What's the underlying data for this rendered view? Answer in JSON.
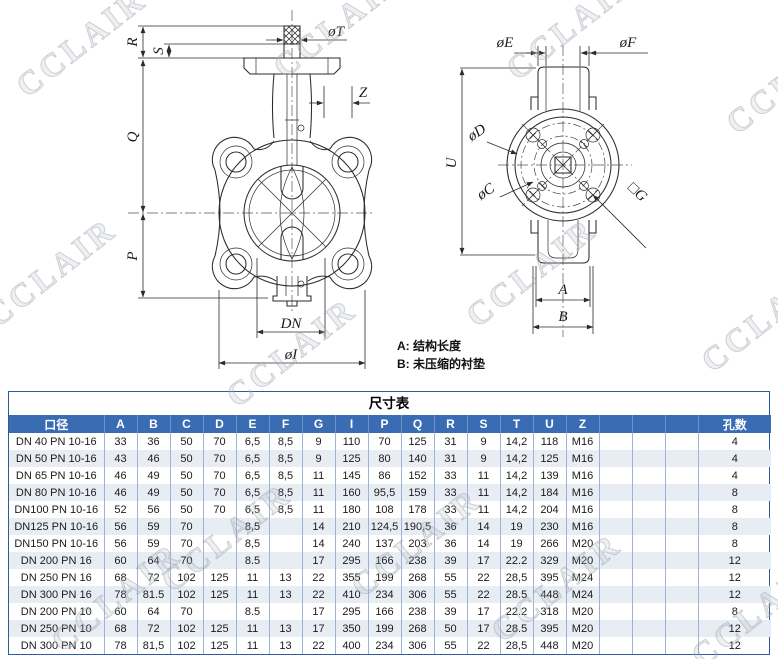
{
  "watermark_text": "CCLAIR",
  "drawing": {
    "front_view": {
      "labels": {
        "r": "R",
        "s": "S",
        "t": "øT",
        "z": "Z",
        "q": "Q",
        "p": "P",
        "dn": "DN",
        "i": "øI"
      }
    },
    "side_view": {
      "labels": {
        "e": "øE",
        "f": "øF",
        "d": "øD",
        "u": "U",
        "c": "øC",
        "g": "□G",
        "a": "A",
        "b": "B"
      }
    },
    "notes": [
      {
        "text": "A: 结构长度"
      },
      {
        "text": "B: 未压缩的衬垫"
      }
    ]
  },
  "table": {
    "title": "尺寸表",
    "columns": [
      "口径",
      "A",
      "B",
      "C",
      "D",
      "E",
      "F",
      "G",
      "I",
      "P",
      "Q",
      "R",
      "S",
      "T",
      "U",
      "Z",
      "",
      "",
      "",
      "孔数"
    ],
    "rows": [
      [
        "DN 40 PN 10-16",
        "33",
        "36",
        "50",
        "70",
        "6,5",
        "8,5",
        "9",
        "110",
        "70",
        "125",
        "31",
        "9",
        "14,2",
        "118",
        "M16",
        "",
        "",
        "",
        "4"
      ],
      [
        "DN 50 PN 10-16",
        "43",
        "46",
        "50",
        "70",
        "6,5",
        "8,5",
        "9",
        "125",
        "80",
        "140",
        "31",
        "9",
        "14,2",
        "125",
        "M16",
        "",
        "",
        "",
        "4"
      ],
      [
        "DN 65 PN 10-16",
        "46",
        "49",
        "50",
        "70",
        "6,5",
        "8,5",
        "11",
        "145",
        "86",
        "152",
        "33",
        "11",
        "14,2",
        "139",
        "M16",
        "",
        "",
        "",
        "4"
      ],
      [
        "DN 80 PN 10-16",
        "46",
        "49",
        "50",
        "70",
        "6,5",
        "8,5",
        "11",
        "160",
        "95,5",
        "159",
        "33",
        "11",
        "14,2",
        "184",
        "M16",
        "",
        "",
        "",
        "8"
      ],
      [
        "DN100 PN 10-16",
        "52",
        "56",
        "50",
        "70",
        "6,5",
        "8,5",
        "11",
        "180",
        "108",
        "178",
        "33",
        "11",
        "14,2",
        "204",
        "M16",
        "",
        "",
        "",
        "8"
      ],
      [
        "DN125 PN 10-16",
        "56",
        "59",
        "70",
        "",
        "8,5",
        "",
        "14",
        "210",
        "124,5",
        "190,5",
        "36",
        "14",
        "19",
        "230",
        "M16",
        "",
        "",
        "",
        "8"
      ],
      [
        "DN150 PN 10-16",
        "56",
        "59",
        "70",
        "",
        "8,5",
        "",
        "14",
        "240",
        "137",
        "203",
        "36",
        "14",
        "19",
        "266",
        "M20",
        "",
        "",
        "",
        "8"
      ],
      [
        "DN 200 PN 16",
        "60",
        "64",
        "70",
        "",
        "8.5",
        "",
        "17",
        "295",
        "166",
        "238",
        "39",
        "17",
        "22.2",
        "329",
        "M20",
        "",
        "",
        "",
        "12"
      ],
      [
        "DN 250 PN 16",
        "68",
        "72",
        "102",
        "125",
        "11",
        "13",
        "22",
        "355",
        "199",
        "268",
        "55",
        "22",
        "28,5",
        "395",
        "M24",
        "",
        "",
        "",
        "12"
      ],
      [
        "DN 300 PN 16",
        "78",
        "81.5",
        "102",
        "125",
        "11",
        "13",
        "22",
        "410",
        "234",
        "306",
        "55",
        "22",
        "28.5",
        "448",
        "M24",
        "",
        "",
        "",
        "12"
      ],
      [
        "DN 200 PN 10",
        "60",
        "64",
        "70",
        "",
        "8.5",
        "",
        "17",
        "295",
        "166",
        "238",
        "39",
        "17",
        "22.2",
        "318",
        "M20",
        "",
        "",
        "",
        "8"
      ],
      [
        "DN 250 PN 10",
        "68",
        "72",
        "102",
        "125",
        "11",
        "13",
        "17",
        "350",
        "199",
        "268",
        "50",
        "17",
        "28.5",
        "395",
        "M20",
        "",
        "",
        "",
        "12"
      ],
      [
        "DN 300 PN 10",
        "78",
        "81,5",
        "102",
        "125",
        "11",
        "13",
        "22",
        "400",
        "234",
        "306",
        "55",
        "22",
        "28,5",
        "448",
        "M20",
        "",
        "",
        "",
        "12"
      ]
    ]
  }
}
